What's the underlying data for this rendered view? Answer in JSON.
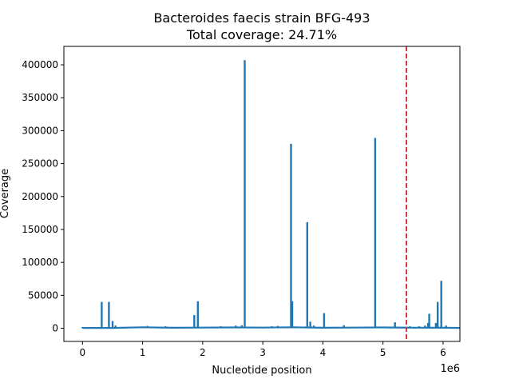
{
  "chart_data": {
    "type": "line",
    "title": "Bacteroides faecis strain BFG-493",
    "subtitle": "Total coverage: 24.71%",
    "xlabel": "Nucleotide position",
    "ylabel": "Coverage",
    "x_offset_label": "1e6",
    "xlim": [
      -0.31,
      6.28
    ],
    "ylim": [
      -20000,
      428000
    ],
    "x_ticks": [
      {
        "value": 0,
        "label": "0"
      },
      {
        "value": 1,
        "label": "1"
      },
      {
        "value": 2,
        "label": "2"
      },
      {
        "value": 3,
        "label": "3"
      },
      {
        "value": 4,
        "label": "4"
      },
      {
        "value": 5,
        "label": "5"
      },
      {
        "value": 6,
        "label": "6"
      }
    ],
    "y_ticks": [
      {
        "value": 0,
        "label": "0"
      },
      {
        "value": 50000,
        "label": "50000"
      },
      {
        "value": 100000,
        "label": "100000"
      },
      {
        "value": 150000,
        "label": "150000"
      },
      {
        "value": 200000,
        "label": "200000"
      },
      {
        "value": 250000,
        "label": "250000"
      },
      {
        "value": 300000,
        "label": "300000"
      },
      {
        "value": 350000,
        "label": "350000"
      },
      {
        "value": 400000,
        "label": "400000"
      }
    ],
    "grid": false,
    "legend": "none",
    "series_color": "#1f77b4",
    "marker_color": "#d62728",
    "vertical_marker_x": 5.39,
    "baseline": [
      [
        0.0,
        500
      ],
      [
        0.5,
        500
      ],
      [
        1.0,
        1500
      ],
      [
        1.5,
        800
      ],
      [
        2.0,
        1000
      ],
      [
        2.5,
        1200
      ],
      [
        3.0,
        1000
      ],
      [
        3.5,
        1500
      ],
      [
        4.0,
        800
      ],
      [
        4.5,
        1000
      ],
      [
        5.0,
        1200
      ],
      [
        5.5,
        900
      ],
      [
        6.0,
        800
      ],
      [
        6.28,
        500
      ]
    ],
    "peaks": [
      {
        "x": 0.0,
        "y": 2000
      },
      {
        "x": 0.32,
        "y": 40000
      },
      {
        "x": 0.44,
        "y": 40000
      },
      {
        "x": 0.5,
        "y": 11000
      },
      {
        "x": 0.55,
        "y": 4000
      },
      {
        "x": 1.08,
        "y": 3500
      },
      {
        "x": 1.38,
        "y": 3000
      },
      {
        "x": 1.86,
        "y": 20000
      },
      {
        "x": 1.92,
        "y": 41000
      },
      {
        "x": 2.3,
        "y": 3000
      },
      {
        "x": 2.55,
        "y": 4000
      },
      {
        "x": 2.65,
        "y": 4500
      },
      {
        "x": 2.7,
        "y": 407000
      },
      {
        "x": 3.15,
        "y": 3000
      },
      {
        "x": 3.25,
        "y": 3500
      },
      {
        "x": 3.47,
        "y": 280000
      },
      {
        "x": 3.49,
        "y": 41000
      },
      {
        "x": 3.74,
        "y": 161000
      },
      {
        "x": 3.79,
        "y": 10000
      },
      {
        "x": 3.85,
        "y": 4000
      },
      {
        "x": 4.02,
        "y": 23000
      },
      {
        "x": 4.35,
        "y": 4500
      },
      {
        "x": 4.87,
        "y": 289000
      },
      {
        "x": 5.2,
        "y": 9000
      },
      {
        "x": 5.45,
        "y": 3000
      },
      {
        "x": 5.6,
        "y": 3000
      },
      {
        "x": 5.7,
        "y": 4000
      },
      {
        "x": 5.75,
        "y": 8000
      },
      {
        "x": 5.77,
        "y": 22000
      },
      {
        "x": 5.88,
        "y": 8000
      },
      {
        "x": 5.91,
        "y": 40000
      },
      {
        "x": 5.97,
        "y": 72000
      },
      {
        "x": 6.05,
        "y": 4000
      }
    ]
  }
}
